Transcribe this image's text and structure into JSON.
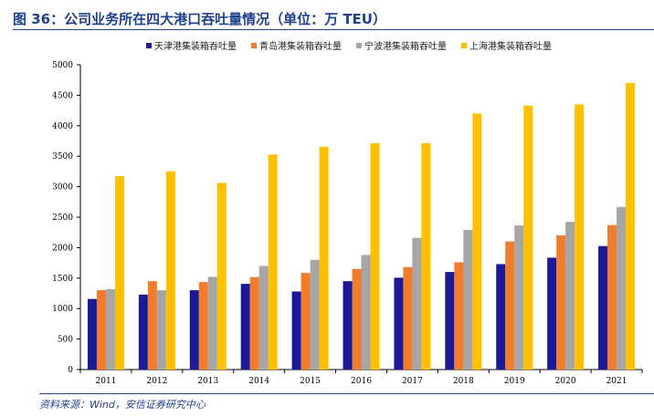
{
  "title": "图 36：公司业务所在四大港口吞吐量情况（单位：万 TEU）",
  "source": "资料来源：Wind，安信证券研究中心",
  "chart_data": {
    "type": "bar",
    "categories": [
      "2011",
      "2012",
      "2013",
      "2014",
      "2015",
      "2016",
      "2017",
      "2018",
      "2019",
      "2020",
      "2021"
    ],
    "series": [
      {
        "name": "天津港集装箱吞吐量",
        "color": "#1a1a99",
        "values": [
          1158,
          1230,
          1301,
          1406,
          1281,
          1450,
          1507,
          1601,
          1730,
          1835,
          2026
        ]
      },
      {
        "name": "青岛港集装箱吞吐量",
        "color": "#f07c2c",
        "values": [
          1302,
          1450,
          1436,
          1518,
          1585,
          1651,
          1681,
          1760,
          2101,
          2201,
          2370
        ]
      },
      {
        "name": "宁波港集装箱吞吐量",
        "color": "#a6a6a6",
        "values": [
          1317,
          1300,
          1521,
          1700,
          1800,
          1880,
          2160,
          2290,
          2363,
          2423,
          2668
        ]
      },
      {
        "name": "上海港集装箱吞吐量",
        "color": "#ffc000",
        "values": [
          3174,
          3253,
          3062,
          3529,
          3654,
          3713,
          3713,
          4201,
          4330,
          4350,
          4703
        ]
      }
    ],
    "ylim": [
      0,
      5000
    ],
    "yticks": [
      0,
      500,
      1000,
      1500,
      2000,
      2500,
      3000,
      3500,
      4000,
      4500,
      5000
    ],
    "legend_position": "top"
  }
}
